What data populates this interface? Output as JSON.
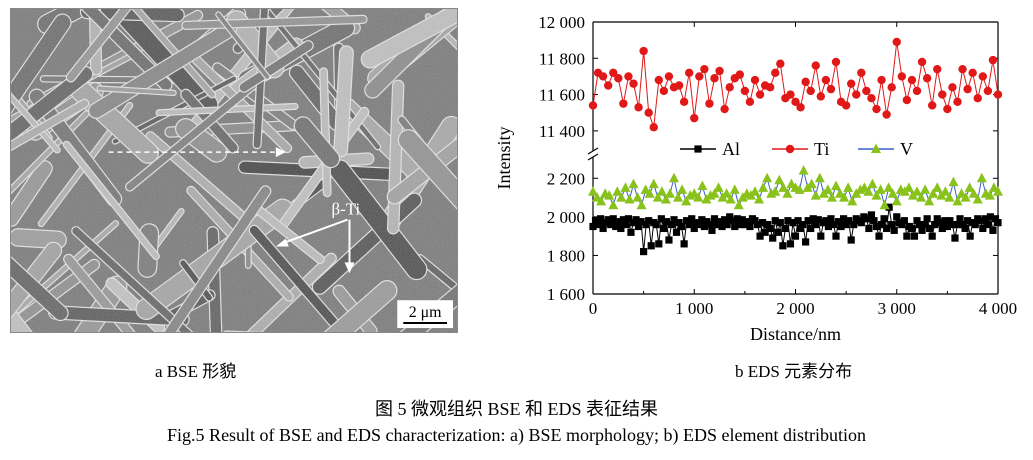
{
  "panel_a": {
    "phase_label": "β-Ti",
    "scale_bar": "2 μm",
    "caption": "a  BSE 形貌"
  },
  "panel_b": {
    "caption": "b  EDS 元素分布"
  },
  "figure_caption_cn": "图 5    微观组织 BSE 和 EDS 表征结果",
  "figure_caption_en": "Fig.5 Result of BSE and EDS characterization: a) BSE morphology; b) EDS element distribution",
  "chart_data": {
    "type": "line",
    "xlabel": "Distance/nm",
    "ylabel": "Intensity",
    "xlim": [
      0,
      4000
    ],
    "x_ticks": [
      "0",
      "1 000",
      "2 000",
      "3 000",
      "4 000"
    ],
    "y_broken_axis": true,
    "y_upper_range": [
      11300,
      12000
    ],
    "y_upper_ticks": [
      "11 400",
      "11 600",
      "11 800",
      "12 000"
    ],
    "y_lower_range": [
      1600,
      2300
    ],
    "y_lower_ticks": [
      "1 600",
      "1 800",
      "2 000",
      "2 200"
    ],
    "legend_position": "upper-middle",
    "series": [
      {
        "name": "Al",
        "color": "#000000",
        "marker": "square",
        "segment": "lower",
        "x": [
          0,
          25,
          50,
          75,
          100,
          125,
          150,
          175,
          200,
          225,
          250,
          275,
          300,
          325,
          350,
          375,
          400,
          425,
          450,
          475,
          500,
          525,
          550,
          575,
          600,
          625,
          650,
          675,
          700,
          725,
          750,
          775,
          800,
          825,
          850,
          875,
          900,
          925,
          950,
          975,
          1000,
          1025,
          1050,
          1075,
          1100,
          1125,
          1150,
          1175,
          1200,
          1225,
          1250,
          1275,
          1300,
          1325,
          1350,
          1375,
          1400,
          1425,
          1450,
          1475,
          1500,
          1525,
          1550,
          1575,
          1600,
          1625,
          1650,
          1675,
          1700,
          1725,
          1750,
          1775,
          1800,
          1825,
          1850,
          1875,
          1900,
          1925,
          1950,
          1975,
          2000,
          2025,
          2050,
          2075,
          2100,
          2125,
          2150,
          2175,
          2200,
          2225,
          2250,
          2275,
          2300,
          2325,
          2350,
          2375,
          2400,
          2425,
          2450,
          2475,
          2500,
          2525,
          2550,
          2575,
          2600,
          2625,
          2650,
          2675,
          2700,
          2725,
          2750,
          2775,
          2800,
          2825,
          2850,
          2875,
          2900,
          2925,
          2950,
          2975,
          3000,
          3025,
          3050,
          3075,
          3100,
          3125,
          3150,
          3175,
          3200,
          3225,
          3250,
          3275,
          3300,
          3325,
          3350,
          3375,
          3400,
          3425,
          3450,
          3475,
          3500,
          3525,
          3550,
          3575,
          3600,
          3625,
          3650,
          3675,
          3700,
          3725,
          3750,
          3775,
          3800,
          3825,
          3850,
          3875,
          3900,
          3925,
          3950,
          3975,
          4000
        ],
        "values": [
          1950,
          1980,
          1960,
          1990,
          1940,
          1970,
          1985,
          1960,
          1990,
          1950,
          1975,
          1940,
          1985,
          1960,
          1990,
          1920,
          1970,
          1985,
          1950,
          1975,
          1820,
          1960,
          1980,
          1850,
          1970,
          1960,
          1860,
          1990,
          1940,
          1975,
          1880,
          1960,
          1985,
          1920,
          1970,
          1950,
          1860,
          1980,
          1960,
          1990,
          1940,
          1970,
          1960,
          1985,
          1950,
          1975,
          1960,
          1930,
          1990,
          1960,
          1975,
          1950,
          1985,
          1960,
          2000,
          1980,
          1950,
          1990,
          1960,
          1985,
          1960,
          1975,
          1950,
          1990,
          1980,
          1960,
          1900,
          1970,
          1920,
          1960,
          1940,
          1890,
          1980,
          1920,
          1970,
          1850,
          1940,
          1980,
          1860,
          1970,
          1900,
          1980,
          1940,
          1960,
          1870,
          1980,
          1940,
          1990,
          1960,
          1985,
          1900,
          1970,
          1980,
          1950,
          1990,
          1960,
          1900,
          1975,
          1950,
          1990,
          1960,
          1980,
          1880,
          1960,
          1990,
          1980,
          1970,
          2000,
          1990,
          1940,
          2010,
          1980,
          1950,
          1900,
          1960,
          1990,
          1940,
          2050,
          1960,
          1930,
          2000,
          1970,
          1960,
          1980,
          1900,
          1950,
          1940,
          1900,
          1980,
          1960,
          1930,
          1960,
          1990,
          1940,
          1900,
          1960,
          1990,
          1970,
          1940,
          1980,
          1950,
          1980,
          1960,
          1890,
          1960,
          1990,
          1960,
          1940,
          1980,
          1900,
          1970,
          1960,
          1990,
          1980,
          1940,
          1990,
          1960,
          2000,
          1930,
          1990,
          1970
        ]
      },
      {
        "name": "Ti",
        "color": "#e01818",
        "marker": "circle",
        "segment": "upper",
        "x": [
          0,
          50,
          100,
          150,
          200,
          250,
          300,
          350,
          400,
          450,
          500,
          550,
          600,
          650,
          700,
          750,
          800,
          850,
          900,
          950,
          1000,
          1050,
          1100,
          1150,
          1200,
          1250,
          1300,
          1350,
          1400,
          1450,
          1500,
          1550,
          1600,
          1650,
          1700,
          1750,
          1800,
          1850,
          1900,
          1950,
          2000,
          2050,
          2100,
          2150,
          2200,
          2250,
          2300,
          2350,
          2400,
          2450,
          2500,
          2550,
          2600,
          2650,
          2700,
          2750,
          2800,
          2850,
          2900,
          2950,
          3000,
          3050,
          3100,
          3150,
          3200,
          3250,
          3300,
          3350,
          3400,
          3450,
          3500,
          3550,
          3600,
          3650,
          3700,
          3750,
          3800,
          3850,
          3900,
          3950,
          4000
        ],
        "values": [
          11540,
          11720,
          11700,
          11650,
          11720,
          11690,
          11550,
          11700,
          11660,
          11530,
          11840,
          11500,
          11420,
          11680,
          11620,
          11700,
          11640,
          11650,
          11560,
          11720,
          11470,
          11700,
          11740,
          11550,
          11690,
          11730,
          11520,
          11640,
          11690,
          11710,
          11620,
          11560,
          11680,
          11600,
          11650,
          11640,
          11720,
          11770,
          11580,
          11600,
          11560,
          11530,
          11670,
          11620,
          11760,
          11590,
          11680,
          11630,
          11780,
          11560,
          11540,
          11660,
          11600,
          11720,
          11620,
          11580,
          11520,
          11680,
          11490,
          11640,
          11890,
          11700,
          11570,
          11680,
          11620,
          11780,
          11690,
          11540,
          11740,
          11600,
          11520,
          11640,
          11560,
          11740,
          11630,
          11720,
          11580,
          11700,
          11620,
          11790,
          11600
        ]
      },
      {
        "name": "V",
        "color": "#88c21a",
        "marker": "triangle",
        "segment": "lower",
        "x": [
          0,
          40,
          80,
          120,
          160,
          200,
          240,
          280,
          320,
          360,
          400,
          440,
          480,
          520,
          560,
          600,
          640,
          680,
          720,
          760,
          800,
          840,
          880,
          920,
          960,
          1000,
          1040,
          1080,
          1120,
          1160,
          1200,
          1240,
          1280,
          1320,
          1360,
          1400,
          1440,
          1480,
          1520,
          1560,
          1600,
          1640,
          1680,
          1720,
          1760,
          1800,
          1840,
          1880,
          1920,
          1960,
          2000,
          2040,
          2080,
          2120,
          2160,
          2200,
          2240,
          2280,
          2320,
          2360,
          2400,
          2440,
          2480,
          2520,
          2560,
          2600,
          2640,
          2680,
          2720,
          2760,
          2800,
          2840,
          2880,
          2920,
          2960,
          3000,
          3040,
          3080,
          3120,
          3160,
          3200,
          3240,
          3280,
          3320,
          3360,
          3400,
          3440,
          3480,
          3520,
          3560,
          3600,
          3640,
          3680,
          3720,
          3760,
          3800,
          3840,
          3880,
          3920,
          3960,
          4000
        ],
        "values": [
          2130,
          2100,
          2080,
          2120,
          2110,
          2060,
          2130,
          2100,
          2150,
          2090,
          2170,
          2100,
          2060,
          2140,
          2120,
          2170,
          2100,
          2130,
          2090,
          2120,
          2200,
          2100,
          2140,
          2080,
          2110,
          2120,
          2100,
          2160,
          2090,
          2110,
          2120,
          2150,
          2100,
          2120,
          2090,
          2140,
          2060,
          2100,
          2120,
          2110,
          2130,
          2090,
          2150,
          2200,
          2120,
          2130,
          2190,
          2150,
          2120,
          2170,
          2150,
          2140,
          2240,
          2150,
          2170,
          2110,
          2200,
          2120,
          2140,
          2100,
          2160,
          2120,
          2100,
          2150,
          2080,
          2120,
          2140,
          2150,
          2130,
          2170,
          2110,
          2140,
          2060,
          2150,
          2120,
          2080,
          2140,
          2130,
          2150,
          2110,
          2130,
          2100,
          2140,
          2080,
          2120,
          2150,
          2110,
          2130,
          2100,
          2180,
          2080,
          2120,
          2100,
          2150,
          2120,
          2090,
          2200,
          2120,
          2110,
          2150,
          2130
        ]
      }
    ]
  }
}
